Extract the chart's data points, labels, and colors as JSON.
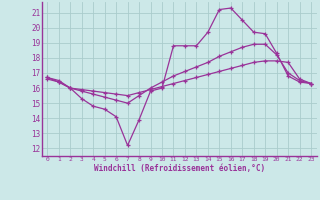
{
  "xlabel": "Windchill (Refroidissement éolien,°C)",
  "bg_color": "#cce8e8",
  "grid_color": "#aacccc",
  "line_color": "#993399",
  "xlim": [
    -0.5,
    23.5
  ],
  "ylim": [
    11.5,
    21.7
  ],
  "xticks": [
    0,
    1,
    2,
    3,
    4,
    5,
    6,
    7,
    8,
    9,
    10,
    11,
    12,
    13,
    14,
    15,
    16,
    17,
    18,
    19,
    20,
    21,
    22,
    23
  ],
  "yticks": [
    12,
    13,
    14,
    15,
    16,
    17,
    18,
    19,
    20,
    21
  ],
  "line1_x": [
    0,
    1,
    2,
    3,
    4,
    5,
    6,
    7,
    8,
    9,
    10,
    11,
    12,
    13,
    14,
    15,
    16,
    17,
    18,
    19,
    20,
    21,
    22,
    23
  ],
  "line1_y": [
    16.7,
    16.5,
    16.0,
    15.3,
    14.8,
    14.6,
    14.1,
    12.2,
    13.9,
    15.8,
    16.0,
    18.8,
    18.8,
    18.8,
    19.7,
    21.2,
    21.3,
    20.5,
    19.7,
    19.6,
    18.3,
    16.8,
    16.4,
    16.3
  ],
  "line2_x": [
    0,
    1,
    2,
    3,
    4,
    5,
    6,
    7,
    8,
    9,
    10,
    11,
    12,
    13,
    14,
    15,
    16,
    17,
    18,
    19,
    20,
    21,
    22,
    23
  ],
  "line2_y": [
    16.7,
    16.4,
    16.0,
    15.8,
    15.6,
    15.4,
    15.2,
    15.0,
    15.5,
    16.0,
    16.4,
    16.8,
    17.1,
    17.4,
    17.7,
    18.1,
    18.4,
    18.7,
    18.9,
    18.9,
    18.2,
    17.0,
    16.5,
    16.3
  ],
  "line3_x": [
    0,
    1,
    2,
    3,
    4,
    5,
    6,
    7,
    8,
    9,
    10,
    11,
    12,
    13,
    14,
    15,
    16,
    17,
    18,
    19,
    20,
    21,
    22,
    23
  ],
  "line3_y": [
    16.6,
    16.4,
    16.0,
    15.9,
    15.8,
    15.7,
    15.6,
    15.5,
    15.7,
    15.9,
    16.1,
    16.3,
    16.5,
    16.7,
    16.9,
    17.1,
    17.3,
    17.5,
    17.7,
    17.8,
    17.8,
    17.7,
    16.6,
    16.3
  ]
}
